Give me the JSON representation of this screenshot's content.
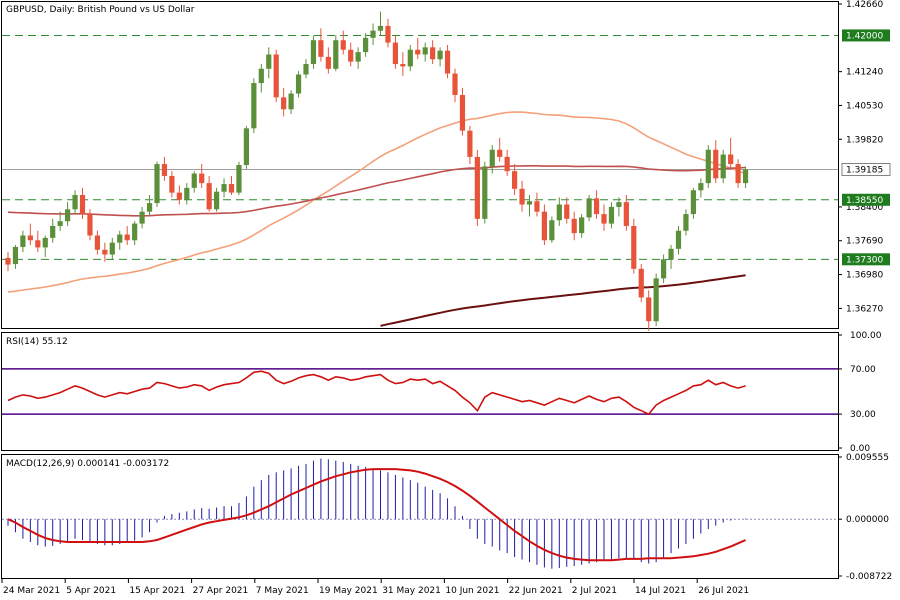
{
  "header": {
    "symbol": "GBPUSD",
    "timeframe": "Daily",
    "description": "British Pound vs US Dollar",
    "title_text": "GBPUSD, Daily:  British Pound vs US Dollar"
  },
  "colors": {
    "bull": "#5b8f3a",
    "bear": "#e8543a",
    "ma_fast": "#f4a07a",
    "ma_mid": "#c0504d",
    "ma_slow": "#6b1010",
    "level_line": "#2e8b2e",
    "level_tag_bg": "#1e7b1e",
    "current_tag_bg": "#ffffff",
    "rsi_line": "#d01010",
    "rsi_bounds": "#4b0082",
    "macd_hist": "#1c1ca8",
    "macd_signal": "#d01010"
  },
  "price_axis": {
    "ticks": [
      "1.42660",
      "1.41240",
      "1.40530",
      "1.39820",
      "1.38400",
      "1.37690",
      "1.36980",
      "1.36270"
    ],
    "levels": [
      {
        "label": "1.42000",
        "value": 1.42
      },
      {
        "label": "1.38550",
        "value": 1.3855
      },
      {
        "label": "1.37300",
        "value": 1.373
      }
    ],
    "current": {
      "label": "1.39185",
      "value": 1.39185
    }
  },
  "rsi": {
    "label": "RSI(14) 55.12",
    "ticks": [
      "100.00",
      "70.00",
      "30.00",
      "0.00"
    ],
    "upper": 70,
    "lower": 30
  },
  "macd": {
    "label": "MACD(12,26,9) 0.000141 -0.003172",
    "ticks": [
      "0.009555",
      "0.000000",
      "-0.008722"
    ]
  },
  "date_axis": {
    "labels": [
      "24 Mar 2021",
      "5 Apr 2021",
      "15 Apr 2021",
      "27 Apr 2021",
      "7 May 2021",
      "19 May 2021",
      "31 May 2021",
      "10 Jun 2021",
      "22 Jun 2021",
      "2 Jul 2021",
      "14 Jul 2021",
      "26 Jul 2021"
    ]
  },
  "chart_data": {
    "type": "candlestick",
    "candles": [
      [
        1.3733,
        1.3745,
        1.3705,
        1.3719
      ],
      [
        1.372,
        1.376,
        1.371,
        1.3756
      ],
      [
        1.3756,
        1.379,
        1.3745,
        1.378
      ],
      [
        1.378,
        1.3805,
        1.376,
        1.377
      ],
      [
        1.377,
        1.379,
        1.3745,
        1.3755
      ],
      [
        1.3755,
        1.378,
        1.3735,
        1.3775
      ],
      [
        1.3775,
        1.3815,
        1.3765,
        1.38
      ],
      [
        1.38,
        1.383,
        1.379,
        1.381
      ],
      [
        1.381,
        1.385,
        1.38,
        1.3835
      ],
      [
        1.3835,
        1.3875,
        1.3825,
        1.3865
      ],
      [
        1.3865,
        1.388,
        1.3815,
        1.3825
      ],
      [
        1.3825,
        1.3835,
        1.377,
        1.378
      ],
      [
        1.378,
        1.379,
        1.374,
        1.375
      ],
      [
        1.375,
        1.3765,
        1.3725,
        1.374
      ],
      [
        1.374,
        1.3775,
        1.373,
        1.3765
      ],
      [
        1.3765,
        1.379,
        1.375,
        1.3782
      ],
      [
        1.3782,
        1.38,
        1.376,
        1.377
      ],
      [
        1.377,
        1.381,
        1.376,
        1.3805
      ],
      [
        1.3805,
        1.384,
        1.3795,
        1.383
      ],
      [
        1.383,
        1.3865,
        1.382,
        1.3848
      ],
      [
        1.3848,
        1.3935,
        1.384,
        1.393
      ],
      [
        1.393,
        1.3945,
        1.3895,
        1.3905
      ],
      [
        1.3905,
        1.3915,
        1.386,
        1.387
      ],
      [
        1.387,
        1.3885,
        1.3845,
        1.3855
      ],
      [
        1.3855,
        1.389,
        1.3845,
        1.388
      ],
      [
        1.388,
        1.3915,
        1.387,
        1.391
      ],
      [
        1.391,
        1.393,
        1.388,
        1.389
      ],
      [
        1.389,
        1.3905,
        1.383,
        1.3835
      ],
      [
        1.3835,
        1.388,
        1.383,
        1.3872
      ],
      [
        1.3872,
        1.39,
        1.386,
        1.3888
      ],
      [
        1.3888,
        1.3905,
        1.3865,
        1.387
      ],
      [
        1.387,
        1.3935,
        1.3865,
        1.3928
      ],
      [
        1.3928,
        1.401,
        1.392,
        1.4005
      ],
      [
        1.4005,
        1.411,
        1.3995,
        1.41
      ],
      [
        1.41,
        1.414,
        1.408,
        1.413
      ],
      [
        1.413,
        1.4175,
        1.411,
        1.416
      ],
      [
        1.416,
        1.417,
        1.406,
        1.407
      ],
      [
        1.407,
        1.409,
        1.403,
        1.4045
      ],
      [
        1.4045,
        1.4085,
        1.4035,
        1.4078
      ],
      [
        1.4078,
        1.4125,
        1.407,
        1.4118
      ],
      [
        1.4118,
        1.415,
        1.411,
        1.414
      ],
      [
        1.414,
        1.42,
        1.413,
        1.419
      ],
      [
        1.419,
        1.4215,
        1.4145,
        1.4155
      ],
      [
        1.4155,
        1.4175,
        1.412,
        1.413
      ],
      [
        1.413,
        1.42,
        1.4125,
        1.419
      ],
      [
        1.419,
        1.421,
        1.416,
        1.417
      ],
      [
        1.417,
        1.4185,
        1.4135,
        1.4145
      ],
      [
        1.4145,
        1.4175,
        1.413,
        1.4165
      ],
      [
        1.4165,
        1.4205,
        1.4155,
        1.4195
      ],
      [
        1.4195,
        1.4225,
        1.418,
        1.421
      ],
      [
        1.421,
        1.425,
        1.42,
        1.422
      ],
      [
        1.422,
        1.4235,
        1.4175,
        1.4185
      ],
      [
        1.4185,
        1.42,
        1.413,
        1.414
      ],
      [
        1.414,
        1.4165,
        1.4115,
        1.4135
      ],
      [
        1.4135,
        1.418,
        1.4125,
        1.417
      ],
      [
        1.417,
        1.4195,
        1.415,
        1.416
      ],
      [
        1.416,
        1.4185,
        1.4145,
        1.4175
      ],
      [
        1.4175,
        1.419,
        1.414,
        1.415
      ],
      [
        1.415,
        1.4175,
        1.4135,
        1.4168
      ],
      [
        1.4168,
        1.418,
        1.411,
        1.412
      ],
      [
        1.412,
        1.413,
        1.406,
        1.4075
      ],
      [
        1.4075,
        1.409,
        1.399,
        1.4
      ],
      [
        1.4,
        1.401,
        1.393,
        1.3945
      ],
      [
        1.3945,
        1.396,
        1.38,
        1.3815
      ],
      [
        1.3815,
        1.3935,
        1.3805,
        1.3925
      ],
      [
        1.3925,
        1.397,
        1.391,
        1.396
      ],
      [
        1.396,
        1.3985,
        1.3935,
        1.3945
      ],
      [
        1.3945,
        1.396,
        1.3905,
        1.3915
      ],
      [
        1.3915,
        1.393,
        1.3865,
        1.3878
      ],
      [
        1.3878,
        1.3895,
        1.383,
        1.3845
      ],
      [
        1.3845,
        1.3865,
        1.382,
        1.3852
      ],
      [
        1.3852,
        1.387,
        1.382,
        1.383
      ],
      [
        1.383,
        1.3845,
        1.376,
        1.377
      ],
      [
        1.377,
        1.382,
        1.3765,
        1.3812
      ],
      [
        1.3812,
        1.386,
        1.38,
        1.3845
      ],
      [
        1.3845,
        1.386,
        1.3805,
        1.3815
      ],
      [
        1.3815,
        1.383,
        1.377,
        1.3785
      ],
      [
        1.3785,
        1.3825,
        1.3775,
        1.3818
      ],
      [
        1.3818,
        1.3865,
        1.381,
        1.3858
      ],
      [
        1.3858,
        1.3875,
        1.3815,
        1.3825
      ],
      [
        1.3825,
        1.3845,
        1.379,
        1.3805
      ],
      [
        1.3805,
        1.385,
        1.3795,
        1.384
      ],
      [
        1.384,
        1.386,
        1.382,
        1.385
      ],
      [
        1.385,
        1.3865,
        1.379,
        1.38
      ],
      [
        1.38,
        1.3815,
        1.37,
        1.371
      ],
      [
        1.371,
        1.372,
        1.364,
        1.365
      ],
      [
        1.365,
        1.3665,
        1.358,
        1.36
      ],
      [
        1.36,
        1.37,
        1.359,
        1.369
      ],
      [
        1.369,
        1.374,
        1.368,
        1.373
      ],
      [
        1.373,
        1.376,
        1.371,
        1.3752
      ],
      [
        1.3752,
        1.38,
        1.374,
        1.379
      ],
      [
        1.379,
        1.3835,
        1.378,
        1.3825
      ],
      [
        1.3825,
        1.388,
        1.3815,
        1.3875
      ],
      [
        1.3875,
        1.39,
        1.386,
        1.389
      ],
      [
        1.389,
        1.397,
        1.388,
        1.396
      ],
      [
        1.396,
        1.398,
        1.389,
        1.39
      ],
      [
        1.39,
        1.396,
        1.389,
        1.395
      ],
      [
        1.395,
        1.3985,
        1.392,
        1.393
      ],
      [
        1.393,
        1.394,
        1.388,
        1.389
      ],
      [
        1.389,
        1.3925,
        1.388,
        1.39185
      ]
    ],
    "ma_fast_periods": 50,
    "ma_mid_periods": 100,
    "ma_slow_periods": 200,
    "rsi_values": [
      42,
      45,
      47,
      46,
      44,
      45,
      47,
      49,
      52,
      55,
      53,
      50,
      47,
      45,
      47,
      49,
      48,
      50,
      52,
      53,
      58,
      57,
      55,
      53,
      54,
      56,
      55,
      51,
      54,
      56,
      57,
      58,
      62,
      67,
      68,
      66,
      60,
      57,
      59,
      62,
      64,
      65,
      63,
      60,
      63,
      62,
      60,
      61,
      63,
      64,
      65,
      60,
      57,
      58,
      61,
      60,
      61,
      57,
      59,
      55,
      51,
      45,
      40,
      33,
      45,
      49,
      47,
      45,
      43,
      41,
      42,
      40,
      38,
      41,
      44,
      42,
      40,
      43,
      46,
      43,
      41,
      44,
      45,
      41,
      36,
      33,
      30,
      38,
      42,
      45,
      48,
      51,
      55,
      56,
      60,
      56,
      58,
      55,
      53,
      55
    ],
    "macd_hist": [
      -0.001,
      -0.002,
      -0.003,
      -0.0035,
      -0.004,
      -0.0042,
      -0.0041,
      -0.0038,
      -0.0035,
      -0.003,
      -0.0032,
      -0.0035,
      -0.0038,
      -0.004,
      -0.004,
      -0.0038,
      -0.0036,
      -0.0033,
      -0.0028,
      -0.002,
      -0.0005,
      0.0005,
      0.0008,
      0.001,
      0.0012,
      0.0015,
      0.0017,
      0.0016,
      0.0018,
      0.002,
      0.002,
      0.0025,
      0.0035,
      0.005,
      0.006,
      0.0068,
      0.0072,
      0.0075,
      0.0078,
      0.0082,
      0.0085,
      0.009,
      0.0093,
      0.0092,
      0.009,
      0.0088,
      0.0085,
      0.0082,
      0.008,
      0.0078,
      0.0075,
      0.0072,
      0.0068,
      0.0064,
      0.006,
      0.0056,
      0.005,
      0.0045,
      0.004,
      0.0032,
      0.002,
      0.0005,
      -0.0015,
      -0.003,
      -0.0038,
      -0.0042,
      -0.0048,
      -0.0052,
      -0.0058,
      -0.0062,
      -0.0066,
      -0.007,
      -0.0074,
      -0.0076,
      -0.0075,
      -0.0073,
      -0.0072,
      -0.007,
      -0.0068,
      -0.0066,
      -0.0064,
      -0.0062,
      -0.006,
      -0.006,
      -0.0062,
      -0.0066,
      -0.0068,
      -0.0066,
      -0.006,
      -0.0052,
      -0.0045,
      -0.0038,
      -0.003,
      -0.0022,
      -0.0015,
      -0.001,
      -0.0005,
      -0.0002,
      0.0,
      0.0001
    ],
    "macd_signal": [
      -0.0,
      -0.0005,
      -0.0012,
      -0.0018,
      -0.0024,
      -0.0029,
      -0.0032,
      -0.0034,
      -0.0035,
      -0.0035,
      -0.0035,
      -0.0035,
      -0.0035,
      -0.0035,
      -0.0035,
      -0.0035,
      -0.0035,
      -0.0035,
      -0.0035,
      -0.0034,
      -0.0032,
      -0.0028,
      -0.0024,
      -0.002,
      -0.0016,
      -0.0012,
      -0.0008,
      -0.0005,
      -0.0003,
      -0.0001,
      0.0001,
      0.0003,
      0.0006,
      0.001,
      0.0015,
      0.002,
      0.0026,
      0.0032,
      0.0038,
      0.0043,
      0.0048,
      0.0053,
      0.0058,
      0.0062,
      0.0066,
      0.0069,
      0.0072,
      0.0074,
      0.0076,
      0.0077,
      0.0077,
      0.0077,
      0.0077,
      0.0076,
      0.0075,
      0.0073,
      0.007,
      0.0066,
      0.0062,
      0.0057,
      0.0051,
      0.0044,
      0.0036,
      0.0027,
      0.0018,
      0.0009,
      0.0,
      -0.0009,
      -0.0018,
      -0.0026,
      -0.0034,
      -0.0041,
      -0.0047,
      -0.0052,
      -0.0056,
      -0.0059,
      -0.0061,
      -0.0062,
      -0.0063,
      -0.0063,
      -0.0063,
      -0.0063,
      -0.0062,
      -0.0061,
      -0.0061,
      -0.0061,
      -0.006,
      -0.006,
      -0.006,
      -0.006,
      -0.0059,
      -0.0058,
      -0.0057,
      -0.0055,
      -0.0053,
      -0.005,
      -0.0046,
      -0.0042,
      -0.0037,
      -0.0032
    ]
  }
}
